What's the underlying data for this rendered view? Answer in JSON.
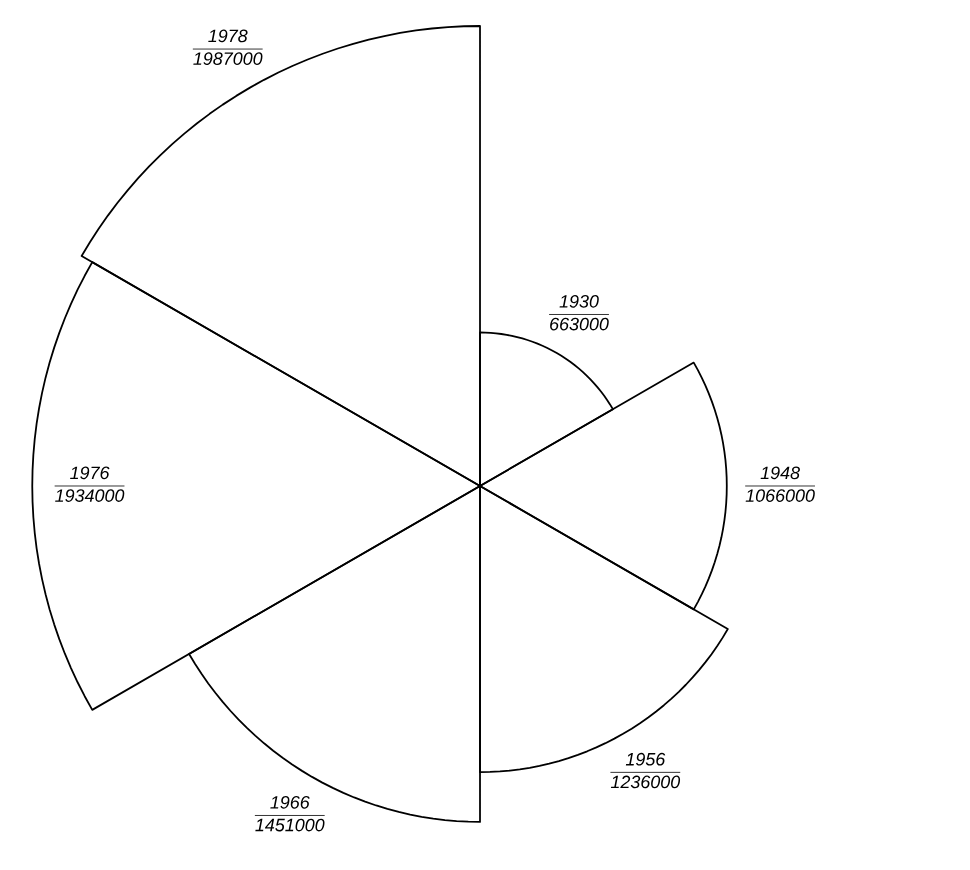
{
  "chart_data": {
    "type": "other",
    "categories": [
      "1930",
      "1948",
      "1956",
      "1966",
      "1976",
      "1978"
    ],
    "values": [
      663000,
      1066000,
      1236000,
      1451000,
      1934000,
      1987000
    ],
    "data_labels": true
  }
}
